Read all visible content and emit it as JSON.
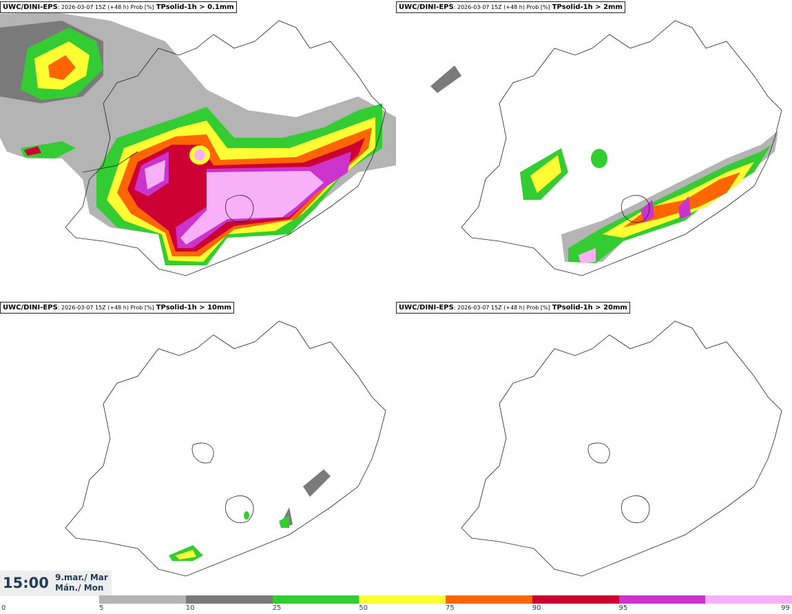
{
  "panels": [
    {
      "model": "UWC/DINI-EPS",
      "meta": ": 2026-03-07 15Z (+48 h) Prob [%]",
      "variable": "TPsolid-1h > 0.1mm"
    },
    {
      "model": "UWC/DINI-EPS",
      "meta": ": 2026-03-07 15Z (+48 h) Prob [%]",
      "variable": "TPsolid-1h > 2mm"
    },
    {
      "model": "UWC/DINI-EPS",
      "meta": ": 2026-03-07 15Z (+48 h) Prob [%]",
      "variable": "TPsolid-1h > 10mm"
    },
    {
      "model": "UWC/DINI-EPS",
      "meta": ": 2026-03-07 15Z (+48 h) Prob [%]",
      "variable": "TPsolid-1h > 20mm"
    }
  ],
  "time": {
    "clock": "15:00",
    "date_line1": "9.mar./ Mar",
    "date_line2": "Mán./ Mon"
  },
  "colorbar": {
    "ticks": [
      "0",
      "5",
      "10",
      "25",
      "50",
      "75",
      "90",
      "95",
      "99"
    ],
    "colors": [
      "#b4b4b4",
      "#7a7a7a",
      "#33cc33",
      "#ffff33",
      "#ff6600",
      "#cc0033",
      "#cc33cc",
      "#f8b0f8"
    ]
  },
  "map_colors": {
    "p5": "#b4b4b4",
    "p10": "#7a7a7a",
    "p25": "#33cc33",
    "p50": "#ffff33",
    "p75": "#ff6600",
    "p90": "#cc0033",
    "p95": "#cc33cc",
    "p99": "#f8b0f8"
  }
}
